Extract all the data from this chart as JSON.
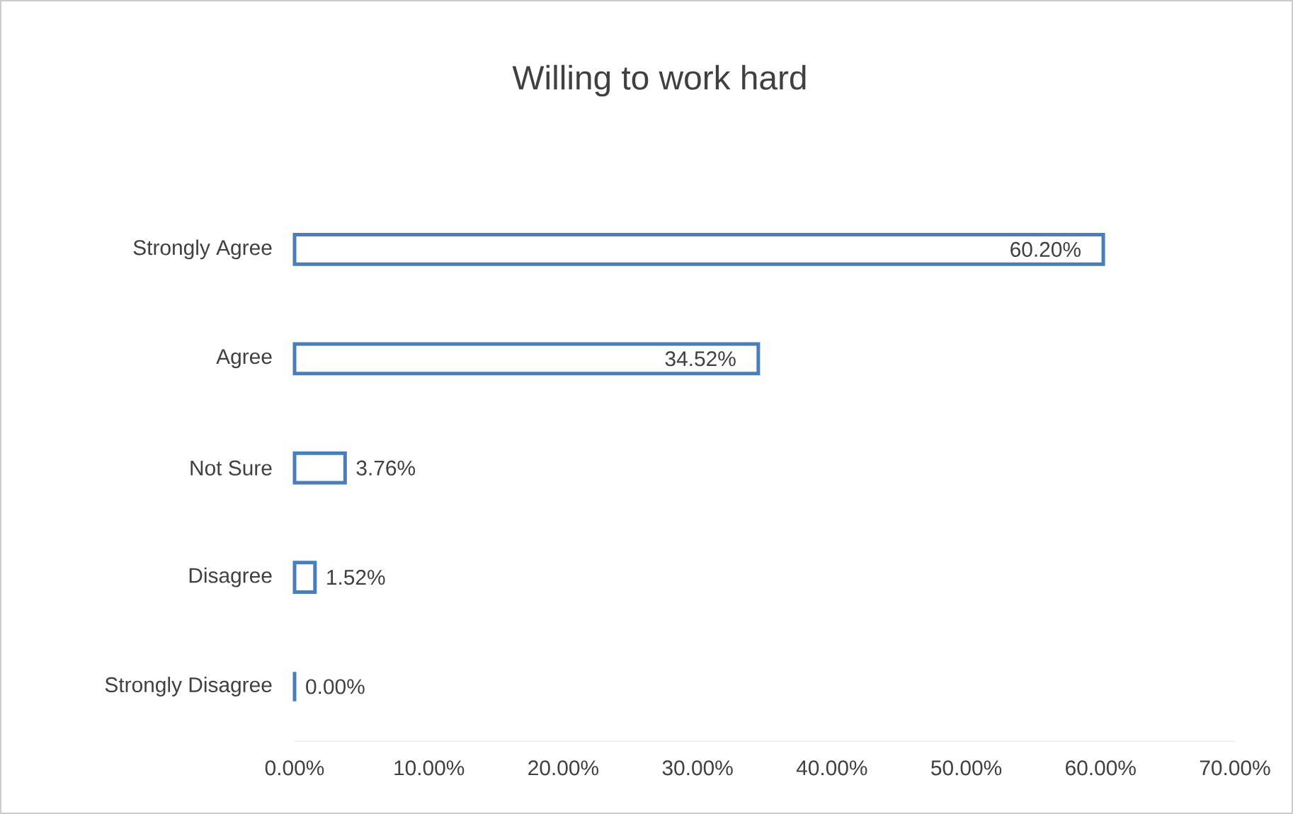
{
  "chart_data": {
    "type": "bar",
    "orientation": "horizontal",
    "title": "Willing to work hard",
    "categories": [
      "Strongly Agree",
      "Agree",
      "Not Sure",
      "Disagree",
      "Strongly Disagree"
    ],
    "values": [
      60.2,
      34.52,
      3.76,
      1.52,
      0
    ],
    "value_labels": [
      "60.20%",
      "34.52%",
      "3.76%",
      "1.52%",
      "0.00%"
    ],
    "color": "#4a7ebb",
    "xlim": [
      0,
      70
    ],
    "xticks": [
      {
        "value": 0,
        "label": "0.00%"
      },
      {
        "value": 10,
        "label": "10.00%"
      },
      {
        "value": 20,
        "label": "20.00%"
      },
      {
        "value": 30,
        "label": "30.00%"
      },
      {
        "value": 40,
        "label": "40.00%"
      },
      {
        "value": 50,
        "label": "50.00%"
      },
      {
        "value": 60,
        "label": "60.00%"
      },
      {
        "value": 70,
        "label": "70.00%"
      }
    ],
    "grid": false
  }
}
